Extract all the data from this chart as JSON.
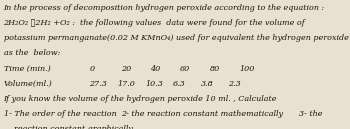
{
  "line1": "In the process of decomposition hydrogen peroxide according to the equation :",
  "line2": "2H₂O₂ ⌅2H₂ +O₂ :  the following values  data were found for the volume of",
  "line3": "potassium permanganate(0.02 M KMnO₄) used for equivalent the hydrogen peroxide",
  "line4": "as the  below:",
  "label_time": "Time (min.)",
  "times": [
    "0",
    "20",
    "40",
    "60",
    "80",
    "100"
  ],
  "label_volume": "Volume(ml.)",
  "volumes": [
    "27.3",
    "17.0",
    "10.3",
    "6.3",
    "3.8",
    "2.3"
  ],
  "line5": "If you know the volume of the hydrogen peroxide 10 ml. , Calculate",
  "line6a": "1- The order of the reaction",
  "line6b": "2- the reaction constant mathematically",
  "line6c": "3- the",
  "line7": "reaction constant graphically",
  "bg_color": "#e8e0d0",
  "text_color": "#1a1208",
  "font_size": 5.8
}
